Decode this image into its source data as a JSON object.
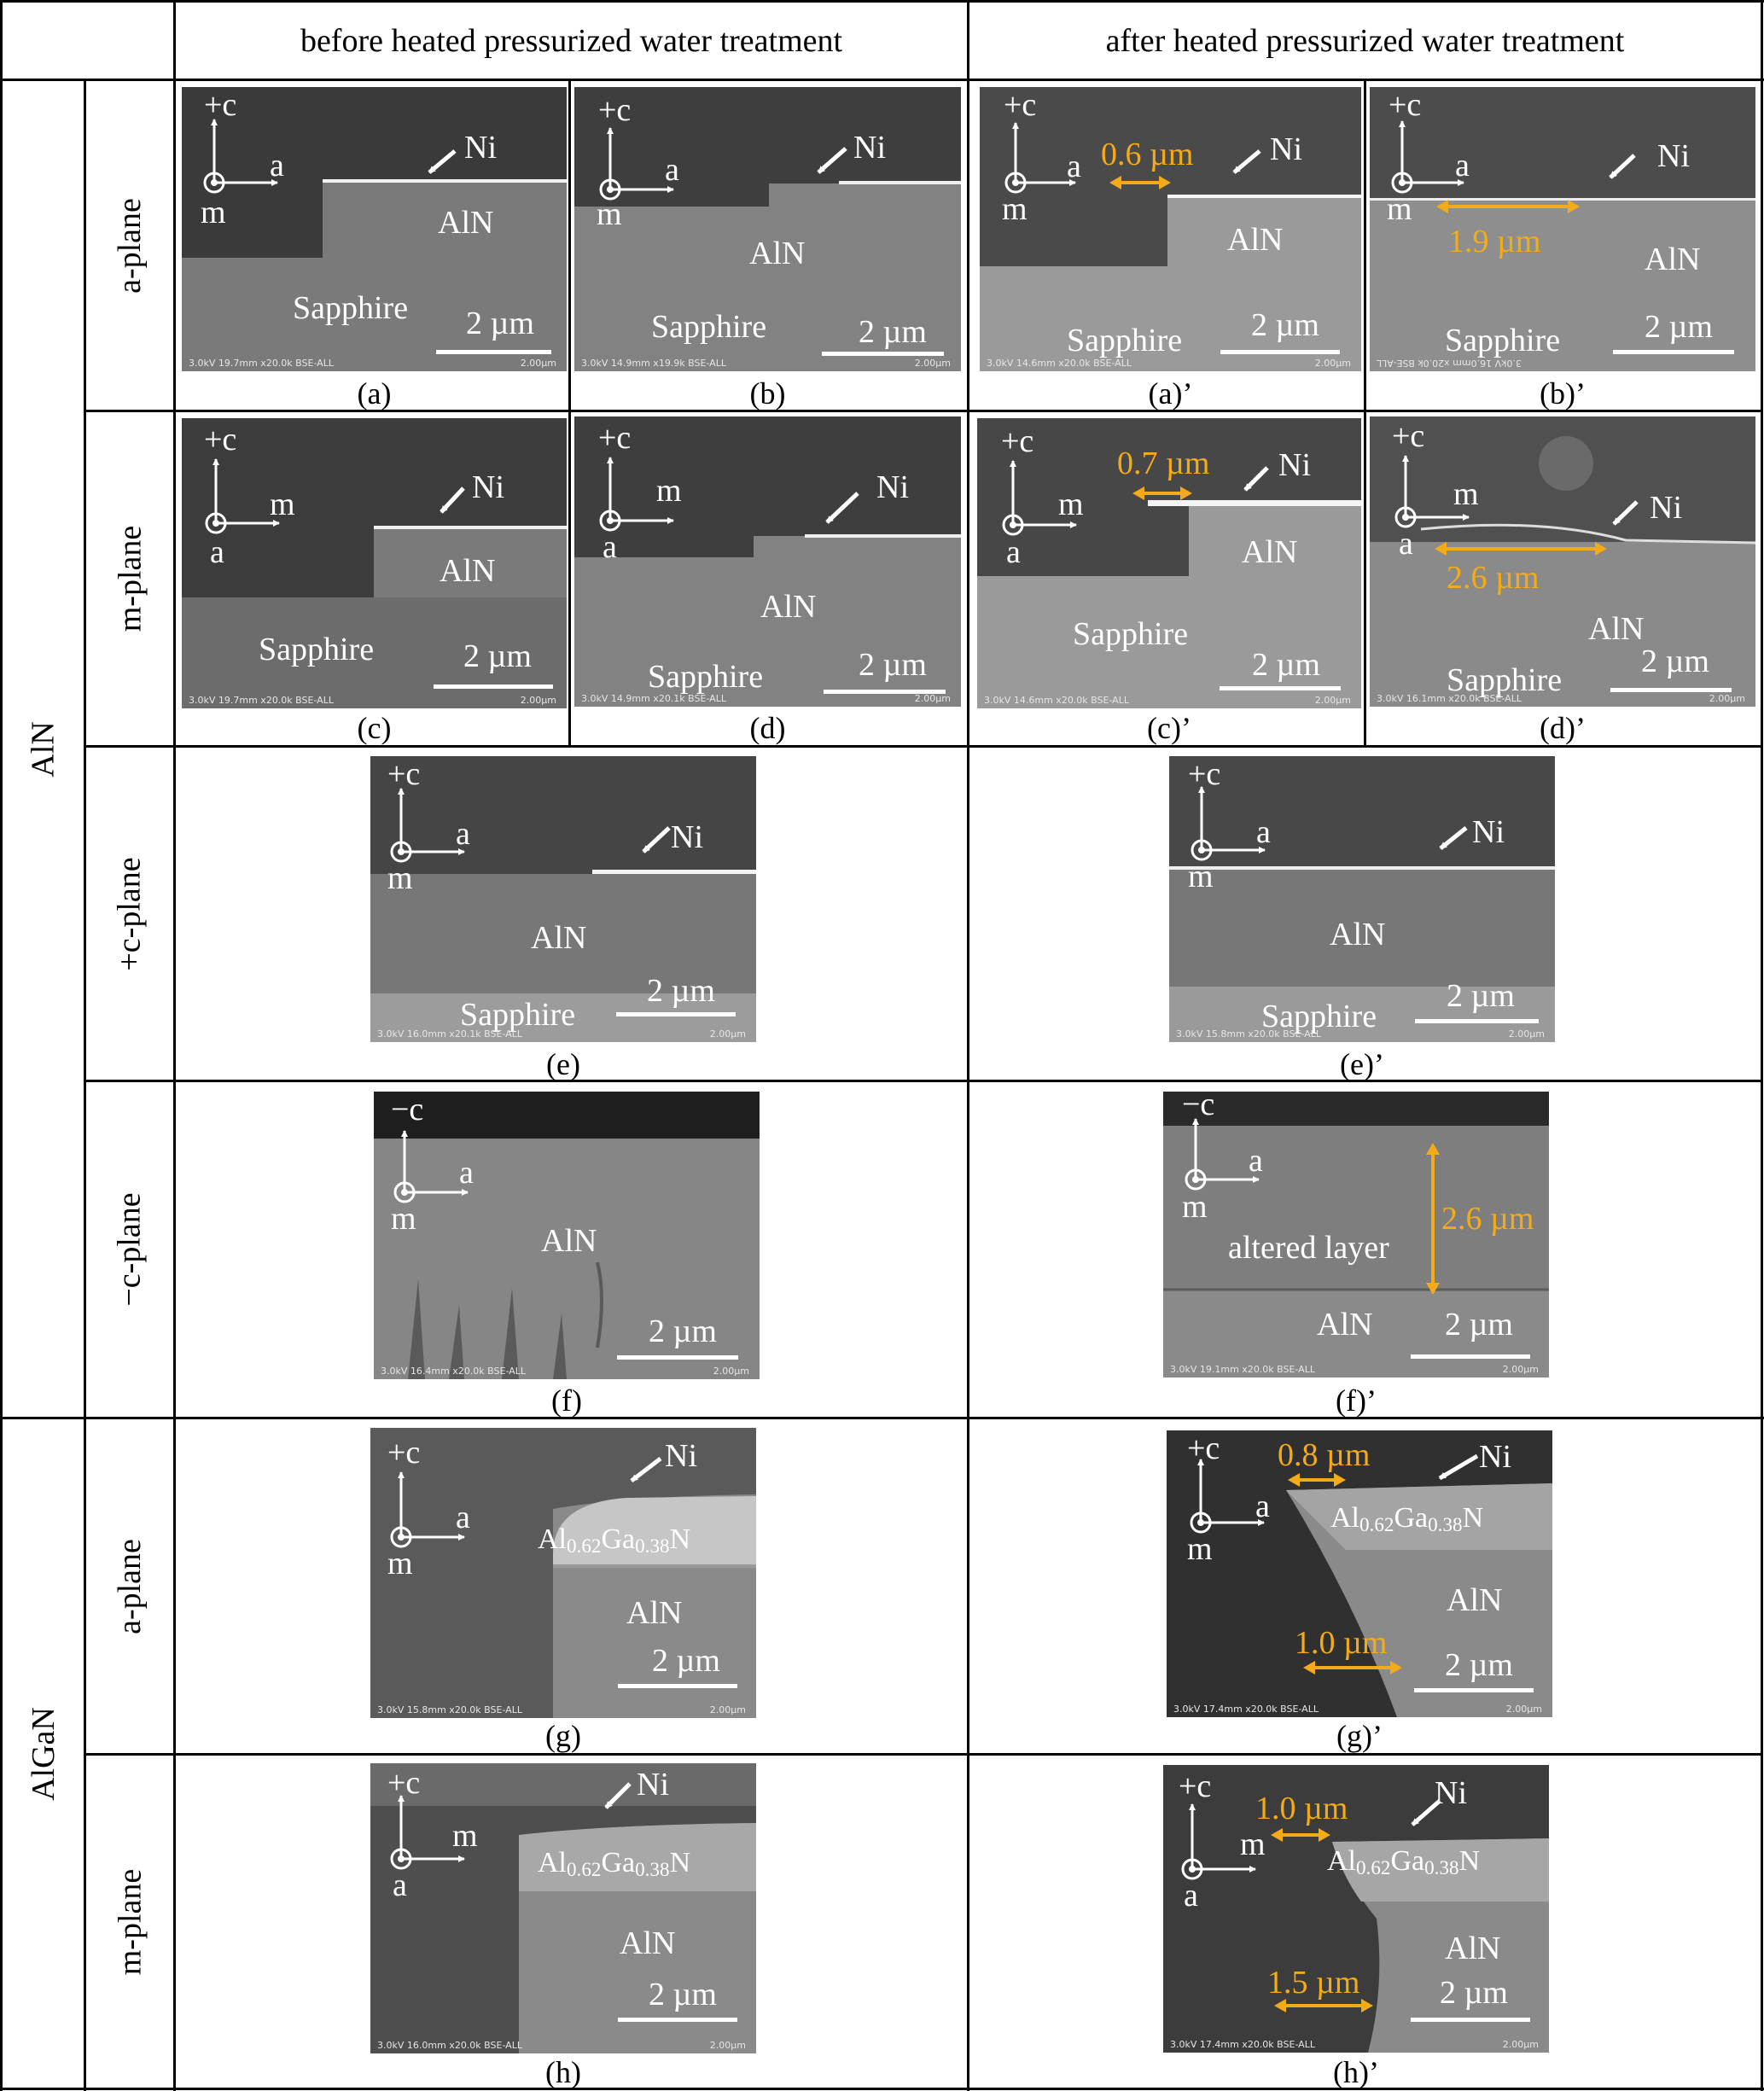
{
  "headers": {
    "before": "before heated pressurized water treatment",
    "after": "after heated pressurized water treatment"
  },
  "groups": {
    "aln": "AlN",
    "algan": "AlGaN"
  },
  "rows": {
    "aln_a": "a-plane",
    "aln_m": "m-plane",
    "aln_pc": "+c-plane",
    "aln_mc": "−c-plane",
    "algan_a": "a-plane",
    "algan_m": "m-plane"
  },
  "labels": {
    "c_plus": "+c",
    "c_minus": "−c",
    "a": "a",
    "m": "m",
    "ni": "Ni",
    "aln": "AlN",
    "sapphire": "Sapphire",
    "scale": "2 µm",
    "altered": "altered layer",
    "al": "Al",
    "al_sub": "0.62",
    "ga": "Ga",
    "ga_sub": "0.38",
    "n": "N"
  },
  "captions": {
    "a": "(a)",
    "b": "(b)",
    "ap": "(a)’",
    "bp": "(b)’",
    "c": "(c)",
    "d": "(d)",
    "cp": "(c)’",
    "dp": "(d)’",
    "e": "(e)",
    "ep": "(e)’",
    "f": "(f)",
    "fp": "(f)’",
    "g": "(g)",
    "gp": "(g)’",
    "h": "(h)",
    "hp": "(h)’"
  },
  "measurements": {
    "ap": "0.6 µm",
    "bp": "1.9 µm",
    "cp": "0.7 µm",
    "dp": "2.6 µm",
    "fp": "2.6 µm",
    "gp_top": "0.8 µm",
    "gp_bottom": "1.0 µm",
    "hp_top": "1.0 µm",
    "hp_bottom": "1.5 µm"
  },
  "sem_info": {
    "a": "3.0kV 19.7mm x20.0k BSE-ALL",
    "b": "3.0kV 14.9mm x19.9k BSE-ALL",
    "ap": "3.0kV 14.6mm x20.0k BSE-ALL",
    "bp": "3.0kV 16.0mm x20.0k BSE-ALL",
    "c": "3.0kV 19.7mm x20.0k BSE-ALL",
    "d": "3.0kV 14.9mm x20.1k BSE-ALL",
    "cp": "3.0kV 14.6mm x20.0k BSE-ALL",
    "dp": "3.0kV 16.1mm x20.0k BSE-ALL",
    "e": "3.0kV 16.0mm x20.1k BSE-ALL",
    "ep": "3.0kV 15.8mm x20.0k BSE-ALL",
    "f": "3.0kV 16.4mm x20.0k BSE-ALL",
    "fp": "3.0kV 19.1mm x20.0k BSE-ALL",
    "g": "3.0kV 15.8mm x20.0k BSE-ALL",
    "gp": "3.0kV 17.4mm x20.0k BSE-ALL",
    "h": "3.0kV 16.0mm x20.0k BSE-ALL",
    "hp": "3.0kV 17.4mm x20.0k BSE-ALL",
    "scale_small": "2.00µm"
  },
  "colors": {
    "measure": "#f4ab17",
    "text": "#ffffff"
  }
}
